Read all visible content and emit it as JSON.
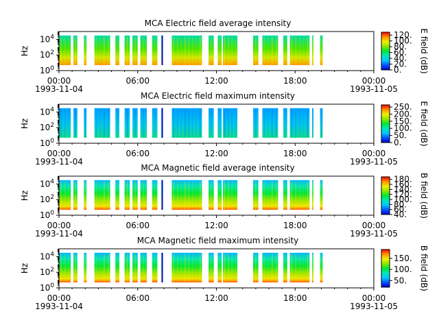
{
  "figure": {
    "panels": [
      {
        "title": "MCA  Electric field average intensity",
        "ylabel": "Hz",
        "colorbar_label": "E field (dB)",
        "colorbar_ticks": [
          "0.",
          "20.",
          "40.",
          "60.",
          "80.",
          "100.",
          "120."
        ],
        "colorbar_values": [
          0,
          20,
          40,
          60,
          80,
          100,
          120
        ],
        "colorbar_range": [
          0,
          130
        ],
        "style": "avg"
      },
      {
        "title": "MCA  Electric field maximum intensity",
        "ylabel": "Hz",
        "colorbar_label": "E field (dB)",
        "colorbar_ticks": [
          "0.",
          "50.",
          "100.",
          "150.",
          "200.",
          "250."
        ],
        "colorbar_values": [
          0,
          50,
          100,
          150,
          200,
          250
        ],
        "colorbar_range": [
          0,
          265
        ],
        "style": "max"
      },
      {
        "title": "MCA  Magnetic field average intensity",
        "ylabel": "Hz",
        "colorbar_label": "B field (dB)",
        "colorbar_ticks": [
          "40.",
          "60.",
          "80.",
          "100.",
          "120.",
          "140.",
          "160.",
          "180."
        ],
        "colorbar_values": [
          40,
          60,
          80,
          100,
          120,
          140,
          160,
          180
        ],
        "colorbar_range": [
          40,
          190
        ],
        "style": "mag"
      },
      {
        "title": "MCA  Magnetic field maximum intensity",
        "ylabel": "Hz",
        "colorbar_label": "B field (dB)",
        "colorbar_ticks": [
          "50.",
          "100.",
          "150."
        ],
        "colorbar_values": [
          50,
          100,
          150
        ],
        "colorbar_range": [
          20,
          190
        ],
        "style": "mag"
      }
    ]
  },
  "chart_data": {
    "type": "heatmap",
    "x_axis": {
      "range_hours": [
        0,
        24
      ],
      "ticks": [
        {
          "hour": 0,
          "label": "00:00",
          "sublabel": "1993-11-04"
        },
        {
          "hour": 6,
          "label": "06:00",
          "sublabel": ""
        },
        {
          "hour": 12,
          "label": "12:00",
          "sublabel": ""
        },
        {
          "hour": 18,
          "label": "18:00",
          "sublabel": ""
        },
        {
          "hour": 24,
          "label": "00:00",
          "sublabel": "1993-11-05"
        }
      ]
    },
    "y_axis": {
      "scale": "log",
      "range": [
        1,
        100000
      ],
      "ticks": [
        {
          "exp": 0,
          "base": "10",
          "exponent": "0"
        },
        {
          "exp": 2,
          "base": "10",
          "exponent": "2"
        },
        {
          "exp": 4,
          "base": "10",
          "exponent": "4"
        }
      ],
      "data_range": [
        5,
        31000
      ]
    },
    "data_segments_hours": [
      [
        -0.6,
        0.9
      ],
      [
        1.1,
        1.4
      ],
      [
        1.9,
        2.1
      ],
      [
        2.7,
        3.9
      ],
      [
        4.3,
        4.6
      ],
      [
        5.0,
        5.4
      ],
      [
        5.6,
        6.0
      ],
      [
        6.2,
        6.7
      ],
      [
        7.1,
        7.5
      ],
      [
        7.8,
        7.9
      ],
      [
        8.6,
        10.9
      ],
      [
        11.4,
        11.8
      ],
      [
        12.1,
        12.4
      ],
      [
        12.5,
        13.6
      ],
      [
        14.8,
        15.2
      ],
      [
        15.5,
        16.7
      ],
      [
        17.1,
        17.4
      ],
      [
        17.6,
        19.1
      ],
      [
        19.3,
        19.4
      ],
      [
        19.9,
        20.1
      ]
    ],
    "series": [
      {
        "name": "MCA  Electric field average intensity"
      },
      {
        "name": "MCA  Electric field maximum intensity"
      },
      {
        "name": "MCA  Magnetic field average intensity"
      },
      {
        "name": "MCA  Magnetic field maximum intensity"
      }
    ]
  }
}
